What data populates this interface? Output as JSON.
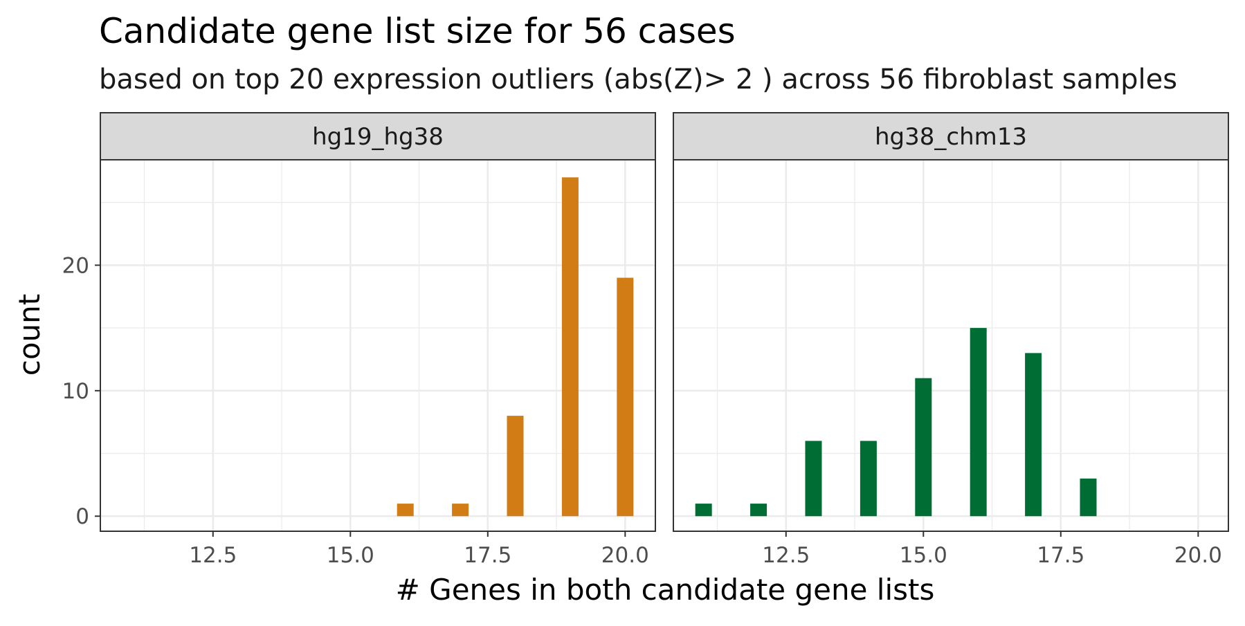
{
  "chart_data": {
    "type": "bar",
    "title": "Candidate gene list size for 56 cases",
    "subtitle": "based on top 20 expression outliers (abs(Z)> 2 ) across 56 fibroblast samples",
    "xlabel": "# Genes in both candidate gene lists",
    "ylabel": "count",
    "xlim": [
      10.45,
      20.55
    ],
    "ylim": [
      -1.2,
      28.4
    ],
    "x_ticks": [
      "12.5",
      "15.0",
      "17.5",
      "20.0"
    ],
    "x_tick_values": [
      12.5,
      15.0,
      17.5,
      20.0
    ],
    "y_ticks": [
      "0",
      "10",
      "20"
    ],
    "y_tick_values": [
      0,
      10,
      20
    ],
    "grid": true,
    "legend": "none",
    "panels": [
      {
        "label": "hg19_hg38",
        "color": "#D17C14",
        "x": [
          16,
          17,
          18,
          19,
          20
        ],
        "values": [
          1,
          1,
          8,
          27,
          19
        ]
      },
      {
        "label": "hg38_chm13",
        "color": "#006D35",
        "x": [
          11,
          12,
          13,
          14,
          15,
          16,
          17,
          18
        ],
        "values": [
          1,
          1,
          6,
          6,
          11,
          15,
          13,
          3
        ]
      }
    ]
  }
}
